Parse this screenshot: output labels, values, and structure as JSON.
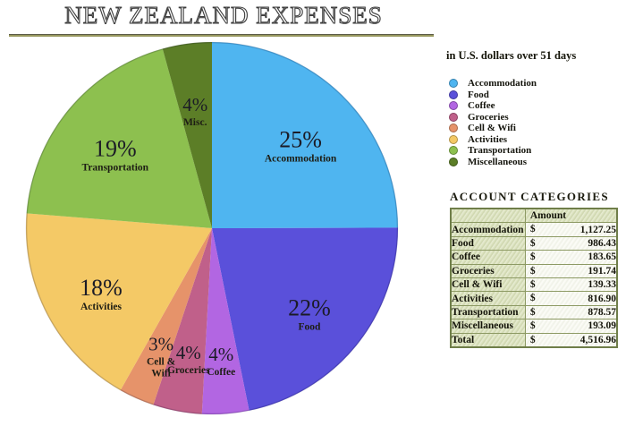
{
  "title": "NEW ZEALAND EXPENSES",
  "subtitle": "in U.S. dollars over 51 days",
  "chart_data": {
    "type": "pie",
    "title": "NEW ZEALAND EXPENSES",
    "note": "in U.S. dollars over 51 days",
    "start_angle_deg": 0,
    "direction": "clockwise",
    "legend_position": "right",
    "label_radius_frac": 0.675,
    "total": 4516.96,
    "slices": [
      {
        "label": "Accommodation",
        "value": 1127.25,
        "pct_label": "25%",
        "name_lines": [
          "Accommodation"
        ],
        "color": "#4fb5f0"
      },
      {
        "label": "Food",
        "value": 986.43,
        "pct_label": "22%",
        "name_lines": [
          "Food"
        ],
        "color": "#5a50da"
      },
      {
        "label": "Coffee",
        "value": 183.65,
        "pct_label": "4%",
        "name_lines": [
          "Coffee"
        ],
        "color": "#b266e2"
      },
      {
        "label": "Groceries",
        "value": 191.74,
        "pct_label": "4%",
        "name_lines": [
          "Groceries"
        ],
        "color": "#c0608a"
      },
      {
        "label": "Cell & Wifi",
        "value": 139.33,
        "pct_label": "3%",
        "name_lines": [
          "Cell &",
          "Wifi"
        ],
        "color": "#e6936a"
      },
      {
        "label": "Activities",
        "value": 816.9,
        "pct_label": "18%",
        "name_lines": [
          "Activities"
        ],
        "color": "#f4c966"
      },
      {
        "label": "Transportation",
        "value": 878.57,
        "pct_label": "19%",
        "name_lines": [
          "Transportation"
        ],
        "color": "#8dc04f"
      },
      {
        "label": "Miscellaneous",
        "value": 193.09,
        "pct_label": "4%",
        "name_lines": [
          "Misc."
        ],
        "color": "#5c7e27"
      }
    ]
  },
  "table": {
    "title": "ACCOUNT CATEGORIES",
    "columns": [
      "",
      "Amount"
    ],
    "currency": "$",
    "rows": [
      {
        "label": "Accommodation",
        "amount": "1,127.25"
      },
      {
        "label": "Food",
        "amount": "986.43"
      },
      {
        "label": "Coffee",
        "amount": "183.65"
      },
      {
        "label": "Groceries",
        "amount": "191.74"
      },
      {
        "label": "Cell & Wifi",
        "amount": "139.33"
      },
      {
        "label": "Activities",
        "amount": "816.90"
      },
      {
        "label": "Transportation",
        "amount": "878.57"
      },
      {
        "label": "Miscellaneous",
        "amount": "193.09"
      },
      {
        "label": "Total",
        "amount": "4,516.96",
        "is_total": true
      }
    ]
  },
  "colors": {
    "title_rule": "#98985f",
    "table_border": "#6f7e49",
    "table_cell_green": "#dbe2bd",
    "text": "#1a1a10"
  }
}
